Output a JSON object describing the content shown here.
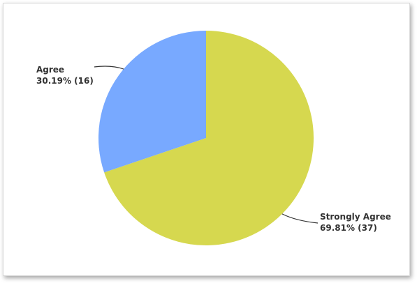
{
  "colors": {
    "strongly_agree": "#d6d84f",
    "agree": "#78a9ff",
    "leader": "#333333"
  },
  "chart_data": {
    "type": "pie",
    "slices": [
      {
        "label": "Strongly Agree",
        "percent": 69.81,
        "count": 37,
        "percent_text": "69.81% (37)",
        "color": "#d6d84f"
      },
      {
        "label": "Agree",
        "percent": 30.19,
        "count": 16,
        "percent_text": "30.19% (16)",
        "color": "#78a9ff"
      }
    ],
    "start": "12 o'clock",
    "direction": "clockwise"
  }
}
